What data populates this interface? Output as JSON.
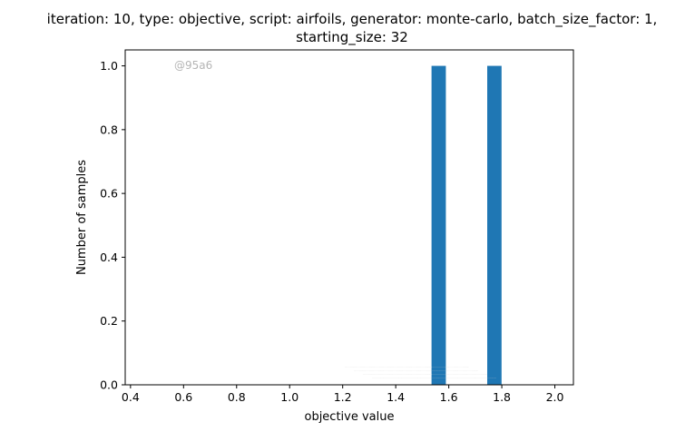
{
  "chart_data": {
    "type": "bar",
    "title_line1": "iteration: 10, type: objective, script: airfoils, generator: monte-carlo, batch_size_factor: 1,",
    "title_line2": "starting_size: 32",
    "xlabel": "objective value",
    "ylabel": "Number of samples",
    "xlim": [
      0.38,
      2.07
    ],
    "ylim": [
      0,
      1.05
    ],
    "x_ticks": [
      0.4,
      0.6,
      0.8,
      1.0,
      1.2,
      1.4,
      1.6,
      1.8,
      2.0
    ],
    "x_tick_labels": [
      "0.4",
      "0.6",
      "0.8",
      "1.0",
      "1.2",
      "1.4",
      "1.6",
      "1.8",
      "2.0"
    ],
    "y_ticks": [
      0.0,
      0.2,
      0.4,
      0.6,
      0.8,
      1.0
    ],
    "y_tick_labels": [
      "0.0",
      "0.2",
      "0.4",
      "0.6",
      "0.8",
      "1.0"
    ],
    "bars": [
      {
        "x_start": 1.535,
        "x_end": 1.589,
        "value": 1.0
      },
      {
        "x_start": 1.745,
        "x_end": 1.799,
        "value": 1.0
      }
    ],
    "bar_color": "#1f77b4",
    "grid": false,
    "legend": "none",
    "annotations": {
      "watermark": "@95a6"
    }
  }
}
